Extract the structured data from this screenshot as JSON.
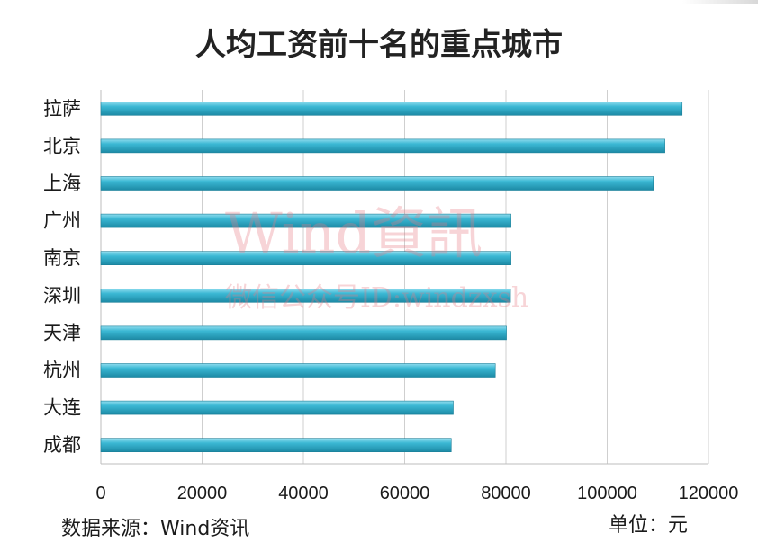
{
  "chart_data": {
    "type": "bar",
    "orientation": "horizontal",
    "title": "人均工资前十名的重点城市",
    "categories": [
      "拉萨",
      "北京",
      "上海",
      "广州",
      "南京",
      "深圳",
      "天津",
      "杭州",
      "大连",
      "成都"
    ],
    "values": [
      114800,
      111400,
      109100,
      81000,
      81000,
      80900,
      80100,
      77900,
      69600,
      69200
    ],
    "xlim": [
      0,
      120000
    ],
    "xticks": [
      "0",
      "20000",
      "40000",
      "60000",
      "80000",
      "100000",
      "120000"
    ],
    "grid": true,
    "bar_color": "#2ea8c4",
    "source": "数据来源：Wind资讯",
    "unit": "单位：元"
  },
  "watermark": {
    "line1": "Wind資訊",
    "line2": "微信公众号ID:windzxsh"
  }
}
